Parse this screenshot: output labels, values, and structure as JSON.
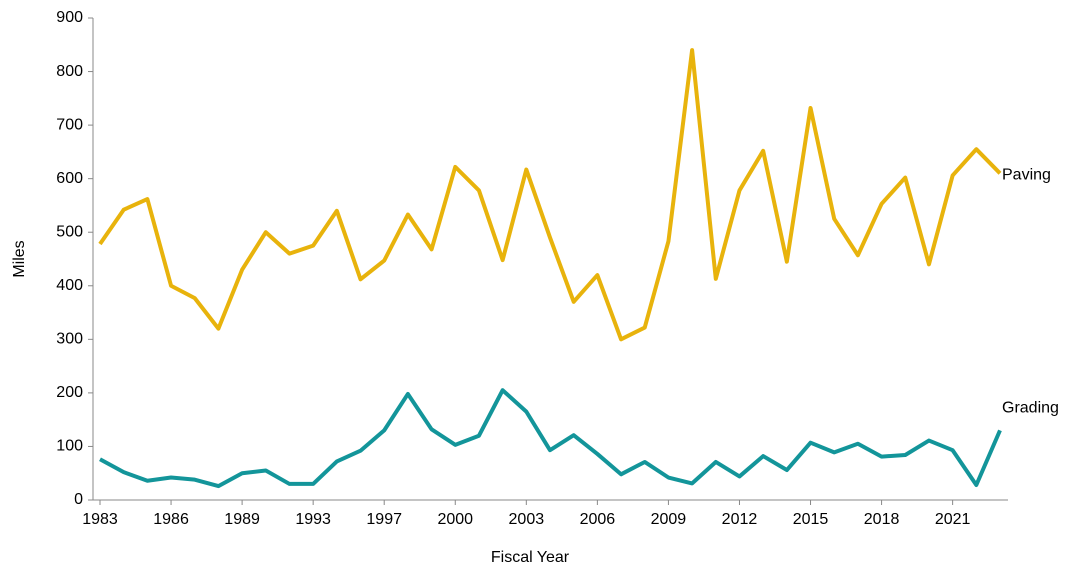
{
  "chart_data": {
    "type": "line",
    "x_label": "Fiscal Year",
    "y_label": "Miles",
    "categories": [
      "1983",
      null,
      null,
      "1986",
      null,
      null,
      "1989",
      null,
      null,
      "1993",
      null,
      null,
      "1997",
      null,
      null,
      "2000",
      null,
      null,
      "2003",
      null,
      null,
      "2006",
      null,
      null,
      "2009",
      null,
      null,
      "2012",
      null,
      null,
      "2015",
      null,
      null,
      "2018",
      null,
      null,
      "2021",
      null,
      null
    ],
    "series": [
      {
        "name": "Paving",
        "color": "#e8b30c",
        "values": [
          478,
          542,
          562,
          400,
          377,
          320,
          430,
          500,
          460,
          475,
          540,
          412,
          447,
          533,
          468,
          622,
          578,
          448,
          617,
          490,
          370,
          420,
          300,
          322,
          483,
          840,
          413,
          578,
          652,
          445,
          732,
          525,
          457,
          553,
          602,
          440,
          606,
          655,
          610
        ]
      },
      {
        "name": "Grading",
        "color": "#13959a",
        "values": [
          76,
          52,
          36,
          42,
          38,
          26,
          50,
          55,
          30,
          30,
          72,
          92,
          130,
          198,
          132,
          103,
          120,
          205,
          165,
          93,
          121,
          86,
          48,
          71,
          42,
          31,
          71,
          44,
          82,
          56,
          107,
          89,
          105,
          81,
          84,
          111,
          93,
          28,
          130
        ]
      }
    ],
    "ylim": [
      0,
      900
    ],
    "yticks": [
      0,
      100,
      200,
      300,
      400,
      500,
      600,
      700,
      800,
      900
    ]
  }
}
